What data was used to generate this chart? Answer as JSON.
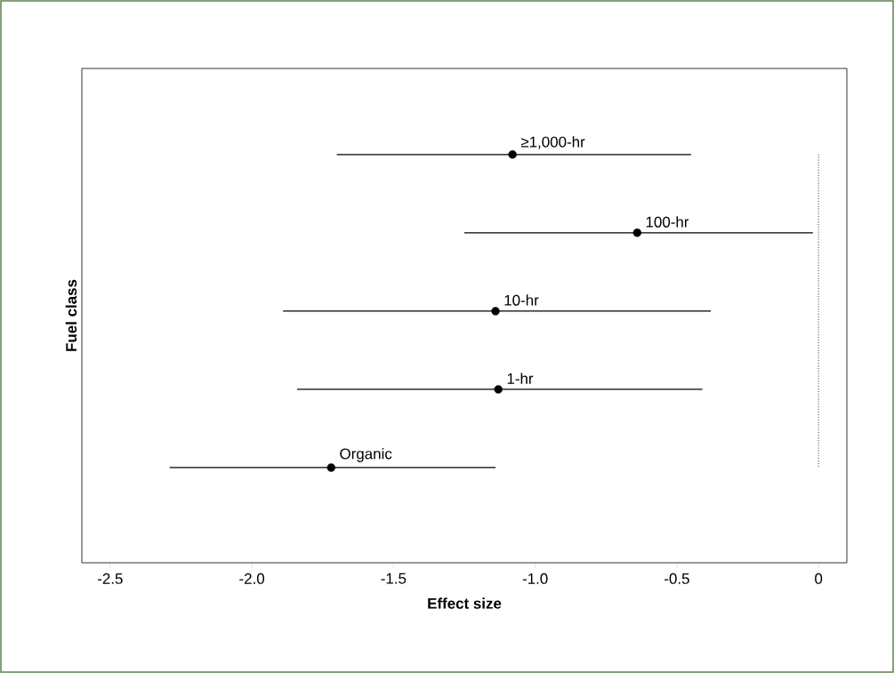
{
  "chart_data": {
    "type": "scatter",
    "orientation": "horizontal",
    "xlabel": "Effect size",
    "ylabel": "Fuel class",
    "categories": [
      "≥1,000-hr",
      "100-hr",
      "10-hr",
      "1-hr",
      "Organic"
    ],
    "values": [
      -1.08,
      -0.64,
      -1.14,
      -1.13,
      -1.72
    ],
    "errors": [
      [
        -1.7,
        -0.45
      ],
      [
        -1.25,
        -0.02
      ],
      [
        -1.89,
        -0.38
      ],
      [
        -1.84,
        -0.41
      ],
      [
        -2.29,
        -1.14
      ]
    ],
    "color": "#000000",
    "marker": "circle",
    "xlim": [
      -2.6,
      0.1
    ],
    "xticks": [
      -2.5,
      {
        "value": -2,
        "label": "-2.0"
      },
      {
        "value": -1.5,
        "label": "-1.5"
      },
      {
        "value": -1,
        "label": "-1.0"
      },
      {
        "value": -0.5,
        "label": "-0.5"
      },
      0
    ],
    "ref_lines": [
      {
        "axis": "x",
        "value": 0,
        "line_style": "dotted"
      }
    ],
    "tick_labels": "x",
    "grid": false
  }
}
